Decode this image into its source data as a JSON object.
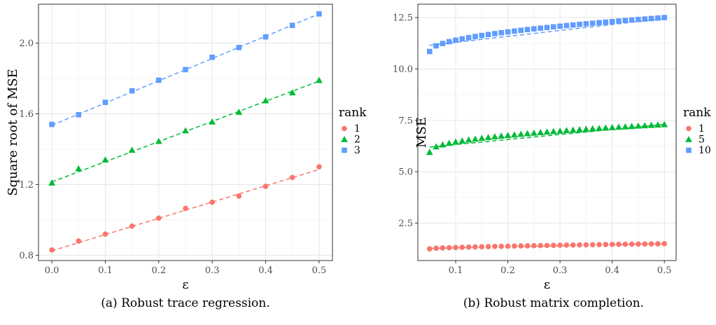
{
  "chart_data": [
    {
      "type": "scatter",
      "caption": "(a) Robust trace regression.",
      "xlabel": "ε",
      "ylabel": "Square root of MSE",
      "xlim": [
        -0.025,
        0.525
      ],
      "ylim": [
        0.77,
        2.22
      ],
      "xticks": [
        0.0,
        0.1,
        0.2,
        0.3,
        0.4,
        0.5
      ],
      "xtick_labels": [
        "0.0",
        "0.1",
        "0.2",
        "0.3",
        "0.4",
        "0.5"
      ],
      "yticks": [
        0.8,
        1.2,
        1.6,
        2.0
      ],
      "ytick_labels": [
        "0.8",
        "1.2",
        "1.6",
        "2.0"
      ],
      "grid": true,
      "legend": {
        "title": "rank",
        "placement": "right"
      },
      "series": [
        {
          "name": "1",
          "color": "#F8766D",
          "marker": "circle",
          "x": [
            0.0,
            0.05,
            0.1,
            0.15,
            0.2,
            0.25,
            0.3,
            0.35,
            0.4,
            0.45,
            0.5
          ],
          "y": [
            0.83,
            0.88,
            0.92,
            0.965,
            1.01,
            1.065,
            1.1,
            1.135,
            1.19,
            1.24,
            1.3
          ],
          "fit": [
            0.825,
            1.285
          ]
        },
        {
          "name": "2",
          "color": "#00BA38",
          "marker": "triangle",
          "x": [
            0.0,
            0.05,
            0.1,
            0.15,
            0.2,
            0.25,
            0.3,
            0.35,
            0.4,
            0.45,
            0.5
          ],
          "y": [
            1.21,
            1.29,
            1.34,
            1.395,
            1.445,
            1.505,
            1.555,
            1.61,
            1.675,
            1.72,
            1.79
          ],
          "fit": [
            1.215,
            1.785
          ]
        },
        {
          "name": "3",
          "color": "#619CFF",
          "marker": "square",
          "x": [
            0.0,
            0.05,
            0.1,
            0.15,
            0.2,
            0.25,
            0.3,
            0.35,
            0.4,
            0.45,
            0.5
          ],
          "y": [
            1.54,
            1.595,
            1.665,
            1.73,
            1.79,
            1.85,
            1.92,
            1.975,
            2.035,
            2.1,
            2.165
          ],
          "fit": [
            1.535,
            2.165
          ]
        }
      ]
    },
    {
      "type": "scatter",
      "caption": "(b) Robust matrix completion.",
      "xlabel": "ε",
      "ylabel": "MSE",
      "xlim": [
        0.0275,
        0.5225
      ],
      "ylim": [
        0.68,
        13.15
      ],
      "xticks": [
        0.1,
        0.2,
        0.3,
        0.4,
        0.5
      ],
      "xtick_labels": [
        "0.1",
        "0.2",
        "0.3",
        "0.4",
        "0.5"
      ],
      "yticks": [
        2.5,
        5.0,
        7.5,
        10.0,
        12.5
      ],
      "ytick_labels": [
        "2.5",
        "5.0",
        "7.5",
        "10.0",
        "12.5"
      ],
      "grid": true,
      "legend": {
        "title": "rank",
        "placement": "right"
      },
      "series": [
        {
          "name": "1",
          "color": "#F8766D",
          "marker": "circle",
          "x_start": 0.05,
          "x_step": 0.0125,
          "count": 37,
          "y_start": 1.25,
          "y_end": 1.5,
          "y_curve": 0.6,
          "fit": [
            1.27,
            1.5
          ]
        },
        {
          "name": "5",
          "color": "#00BA38",
          "marker": "triangle",
          "x_start": 0.05,
          "x_step": 0.0125,
          "count": 37,
          "y_start": 5.95,
          "y_end": 7.3,
          "y_curve": 0.45,
          "fit": [
            6.2,
            7.3
          ]
        },
        {
          "name": "10",
          "color": "#619CFF",
          "marker": "square",
          "x_start": 0.05,
          "x_step": 0.0125,
          "count": 37,
          "y_start": 10.85,
          "y_end": 12.5,
          "y_curve": 0.5,
          "fit": [
            11.15,
            12.45
          ]
        }
      ]
    }
  ]
}
